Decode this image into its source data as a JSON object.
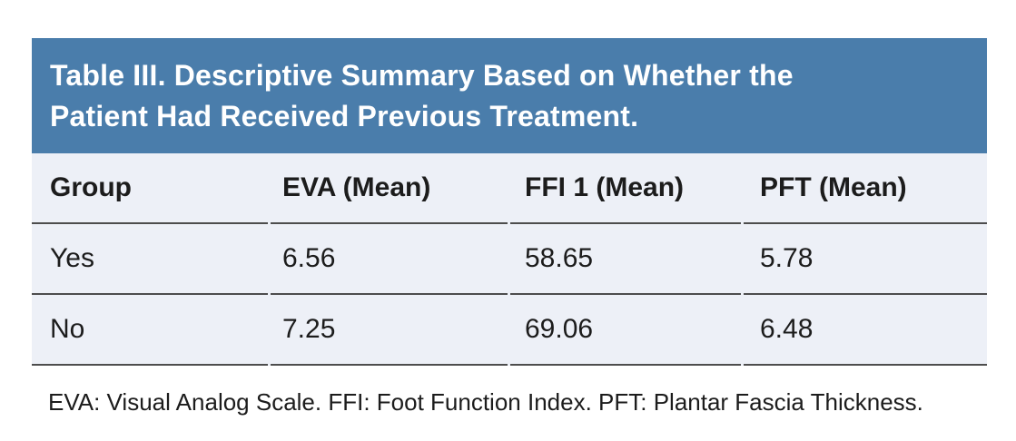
{
  "table": {
    "title_line1": "Table III. Descriptive Summary Based on Whether the",
    "title_line2": "Patient Had Received Previous Treatment.",
    "columns": [
      "Group",
      "EVA (Mean)",
      "FFI 1 (Mean)",
      "PFT (Mean)"
    ],
    "rows": [
      [
        "Yes",
        "6.56",
        "58.65",
        "5.78"
      ],
      [
        "No",
        "7.25",
        "69.06",
        "6.48"
      ]
    ],
    "footnote": "EVA: Visual Analog Scale. FFI: Foot Function Index. PFT: Plantar Fascia Thickness.",
    "colors": {
      "title_bg": "#4a7dab",
      "title_text": "#ffffff",
      "row_bg": "#edf0f7",
      "rule": "#4d4d4d",
      "body_text": "#1c1c1c"
    }
  },
  "chart_data": {
    "type": "table",
    "title": "Table III. Descriptive Summary Based on Whether the Patient Had Received Previous Treatment.",
    "columns": [
      "Group",
      "EVA (Mean)",
      "FFI 1 (Mean)",
      "PFT (Mean)"
    ],
    "rows": [
      {
        "Group": "Yes",
        "EVA (Mean)": 6.56,
        "FFI 1 (Mean)": 58.65,
        "PFT (Mean)": 5.78
      },
      {
        "Group": "No",
        "EVA (Mean)": 7.25,
        "FFI 1 (Mean)": 69.06,
        "PFT (Mean)": 6.48
      }
    ],
    "footnote": "EVA: Visual Analog Scale. FFI: Foot Function Index. PFT: Plantar Fascia Thickness."
  }
}
